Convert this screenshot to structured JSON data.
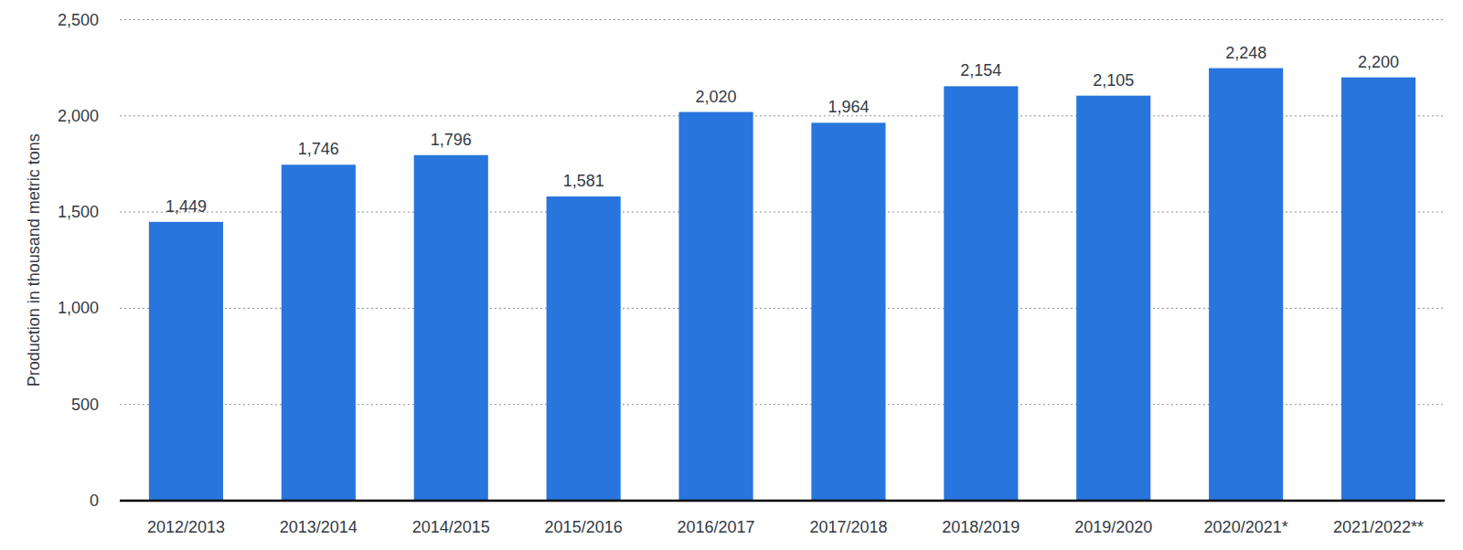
{
  "chart_data": {
    "type": "bar",
    "y_label": "Production in thousand metric tons",
    "categories": [
      "2012/2013",
      "2013/2014",
      "2014/2015",
      "2015/2016",
      "2016/2017",
      "2017/2018",
      "2018/2019",
      "2019/2020",
      "2020/2021*",
      "2021/2022**"
    ],
    "values": [
      1449,
      1746,
      1796,
      1581,
      2020,
      1964,
      2154,
      2105,
      2248,
      2200
    ],
    "value_labels": [
      "1,449",
      "1,746",
      "1,796",
      "1,581",
      "2,020",
      "1,964",
      "2,154",
      "2,105",
      "2,248",
      "2,200"
    ],
    "color": "#2876dd",
    "ylim": [
      0,
      2500
    ],
    "yticks": [
      0,
      500,
      {
        "value": 1000,
        "label": "1,000"
      },
      {
        "value": 1500,
        "label": "1,500"
      },
      {
        "value": 2000,
        "label": "2,000"
      },
      {
        "value": 2500,
        "label": "2,500"
      }
    ],
    "grid": true,
    "data_labels": true
  }
}
